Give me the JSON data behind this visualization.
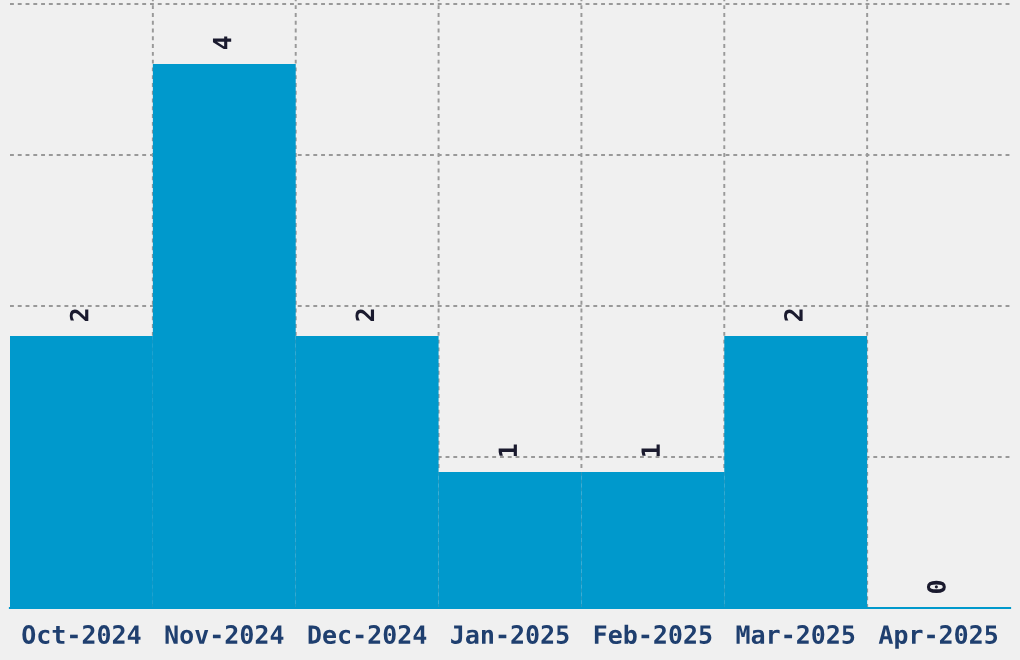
{
  "chart_data": {
    "type": "bar",
    "categories": [
      "Oct-2024",
      "Nov-2024",
      "Dec-2024",
      "Jan-2025",
      "Feb-2025",
      "Mar-2025",
      "Apr-2025"
    ],
    "values": [
      2,
      4,
      2,
      1,
      1,
      2,
      0
    ],
    "color": "#0099cc",
    "data_labels": true,
    "ylim": [
      0,
      4.47
    ],
    "yticks": [
      {
        "value": 0,
        "label": null
      },
      {
        "value": 1.11,
        "label": null
      },
      {
        "value": 2.22,
        "label": null
      },
      {
        "value": 3.33,
        "label": null
      },
      {
        "value": 4.44,
        "label": null
      }
    ],
    "tick_labels": "x",
    "grid": true
  }
}
